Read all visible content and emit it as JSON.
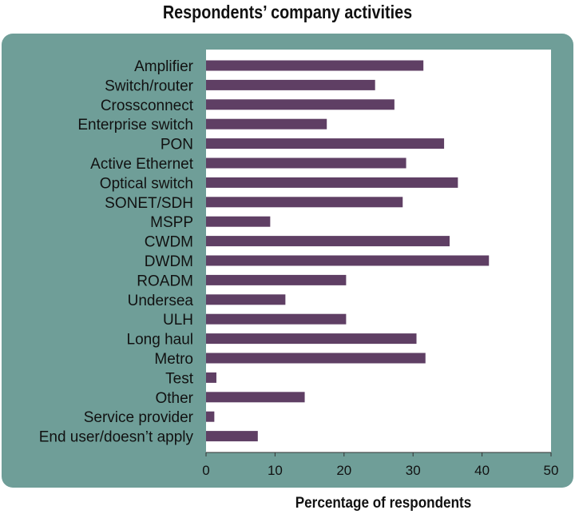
{
  "chart_data": {
    "type": "bar",
    "orientation": "horizontal",
    "title": "Respondents’ company activities",
    "xlabel": "Percentage of respondents",
    "categories": [
      "Amplifier",
      "Switch/router",
      "Crossconnect",
      "Enterprise switch",
      "PON",
      "Active Ethernet",
      "Optical switch",
      "SONET/SDH",
      "MSPP",
      "CWDM",
      "DWDM",
      "ROADM",
      "Undersea",
      "ULH",
      "Long haul",
      "Metro",
      "Test",
      "Other",
      "Service provider",
      "End user/doesn’t apply"
    ],
    "values": [
      31.5,
      24.5,
      27.3,
      17.5,
      34.5,
      29.0,
      36.5,
      28.5,
      9.3,
      35.3,
      41.0,
      20.3,
      11.5,
      20.3,
      30.5,
      31.8,
      1.5,
      14.3,
      1.2,
      7.5
    ],
    "xlim": [
      0,
      50
    ],
    "xticks": [
      "0",
      "10",
      "20",
      "30",
      "40",
      "50"
    ],
    "bar_color": "#5f3f64",
    "panel_color": "#6f9e98",
    "plot_background": "#ffffff",
    "grid": false,
    "legend": "none"
  }
}
